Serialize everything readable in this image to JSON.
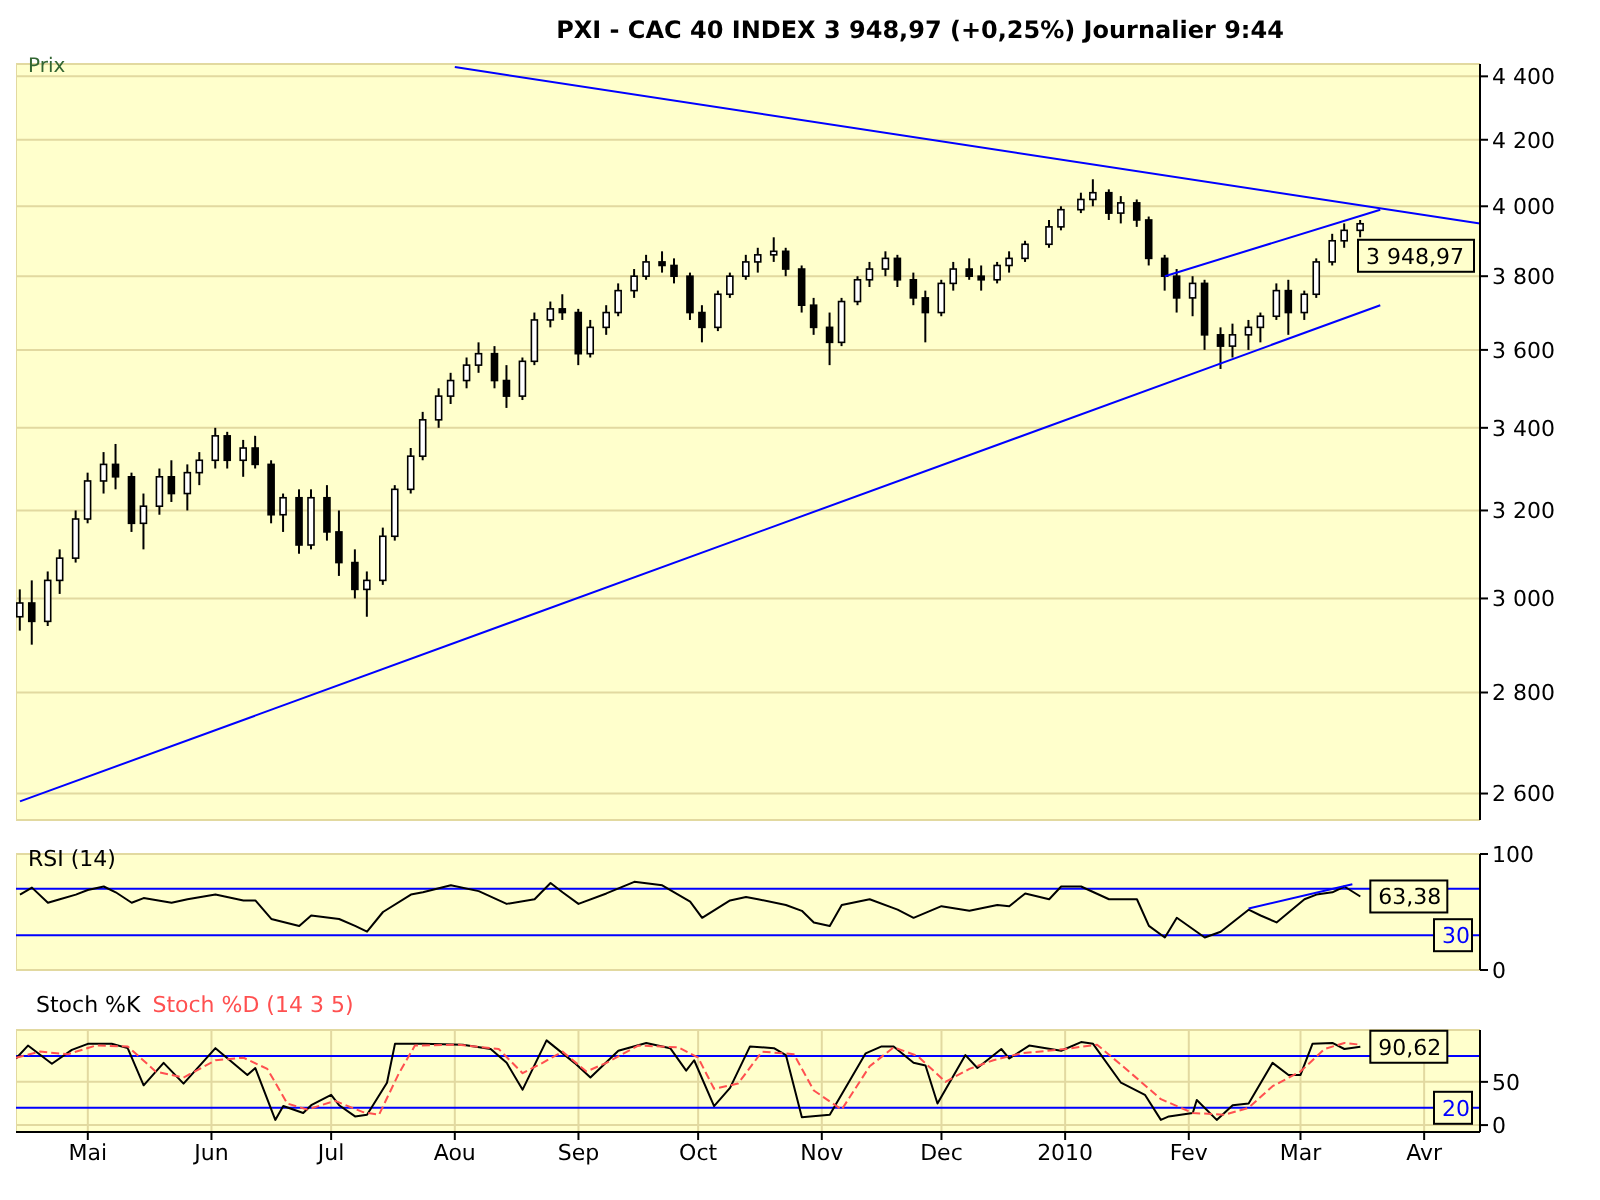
{
  "chart_data": [
    {
      "type": "candlestick",
      "title": "PXI - CAC 40 INDEX   3 948,97 (+0,25%)   Journalier  9:44",
      "ylabel": "Prix",
      "color": "#000000",
      "log": true,
      "grid": true,
      "tick_labels": "y",
      "xlim": [
        "2009-04-13",
        "2010-04-15"
      ],
      "xticks": [
        {
          "value": "2009-05-01",
          "label": null
        },
        {
          "value": "2009-06-01",
          "label": null
        },
        {
          "value": "2009-07-01",
          "label": null
        },
        {
          "value": "2009-08-01",
          "label": null
        },
        {
          "value": "2009-09-01",
          "label": null
        },
        {
          "value": "2009-10-01",
          "label": null
        },
        {
          "value": "2009-11-01",
          "label": null
        },
        {
          "value": "2009-12-01",
          "label": null
        },
        {
          "value": "2010-01-01",
          "label": null
        },
        {
          "value": "2010-02-01",
          "label": null
        },
        {
          "value": "2010-03-01",
          "label": null
        },
        {
          "value": "2010-04-01",
          "label": null
        }
      ],
      "ylim": [
        2550,
        4440
      ],
      "yticks": [
        {
          "value": 2600,
          "label": "2 600"
        },
        {
          "value": 2800,
          "label": "2 800"
        },
        {
          "value": 3000,
          "label": "3 000"
        },
        {
          "value": 3200,
          "label": "3 200"
        },
        {
          "value": 3400,
          "label": "3 400"
        },
        {
          "value": 3600,
          "label": "3 600"
        },
        {
          "value": 3800,
          "label": "3 800"
        },
        {
          "value": 4000,
          "label": "4 000"
        },
        {
          "value": 4200,
          "label": "4 200"
        },
        {
          "value": 4400,
          "label": "4 400"
        }
      ],
      "x": [
        "2009-04-14",
        "2009-04-17",
        "2009-04-21",
        "2009-04-24",
        "2009-04-28",
        "2009-05-01",
        "2009-05-05",
        "2009-05-08",
        "2009-05-12",
        "2009-05-15",
        "2009-05-19",
        "2009-05-22",
        "2009-05-26",
        "2009-05-29",
        "2009-06-02",
        "2009-06-05",
        "2009-06-09",
        "2009-06-12",
        "2009-06-16",
        "2009-06-19",
        "2009-06-23",
        "2009-06-26",
        "2009-06-30",
        "2009-07-03",
        "2009-07-07",
        "2009-07-10",
        "2009-07-14",
        "2009-07-17",
        "2009-07-21",
        "2009-07-24",
        "2009-07-28",
        "2009-07-31",
        "2009-08-04",
        "2009-08-07",
        "2009-08-11",
        "2009-08-14",
        "2009-08-18",
        "2009-08-21",
        "2009-08-25",
        "2009-08-28",
        "2009-09-01",
        "2009-09-04",
        "2009-09-08",
        "2009-09-11",
        "2009-09-15",
        "2009-09-18",
        "2009-09-22",
        "2009-09-25",
        "2009-09-29",
        "2009-10-02",
        "2009-10-06",
        "2009-10-09",
        "2009-10-13",
        "2009-10-16",
        "2009-10-20",
        "2009-10-23",
        "2009-10-27",
        "2009-10-30",
        "2009-11-03",
        "2009-11-06",
        "2009-11-10",
        "2009-11-13",
        "2009-11-17",
        "2009-11-20",
        "2009-11-24",
        "2009-11-27",
        "2009-12-01",
        "2009-12-04",
        "2009-12-08",
        "2009-12-11",
        "2009-12-15",
        "2009-12-18",
        "2009-12-22",
        "2009-12-28",
        "2009-12-31",
        "2010-01-05",
        "2010-01-08",
        "2010-01-12",
        "2010-01-15",
        "2010-01-19",
        "2010-01-22",
        "2010-01-26",
        "2010-01-29",
        "2010-02-02",
        "2010-02-05",
        "2010-02-09",
        "2010-02-12",
        "2010-02-16",
        "2010-02-19",
        "2010-02-23",
        "2010-02-26",
        "2010-03-02",
        "2010-03-05",
        "2010-03-09",
        "2010-03-12",
        "2010-03-16"
      ],
      "ohlc": [
        [
          2960,
          3020,
          2930,
          2990
        ],
        [
          2990,
          3040,
          2900,
          2950
        ],
        [
          2950,
          3060,
          2940,
          3040
        ],
        [
          3040,
          3110,
          3010,
          3090
        ],
        [
          3090,
          3200,
          3080,
          3180
        ],
        [
          3180,
          3290,
          3170,
          3270
        ],
        [
          3270,
          3340,
          3240,
          3310
        ],
        [
          3310,
          3360,
          3250,
          3280
        ],
        [
          3280,
          3290,
          3150,
          3170
        ],
        [
          3170,
          3240,
          3110,
          3210
        ],
        [
          3210,
          3300,
          3190,
          3280
        ],
        [
          3280,
          3320,
          3220,
          3240
        ],
        [
          3240,
          3310,
          3200,
          3290
        ],
        [
          3290,
          3340,
          3260,
          3320
        ],
        [
          3320,
          3400,
          3300,
          3380
        ],
        [
          3380,
          3390,
          3300,
          3320
        ],
        [
          3320,
          3370,
          3280,
          3350
        ],
        [
          3350,
          3380,
          3300,
          3310
        ],
        [
          3310,
          3320,
          3170,
          3190
        ],
        [
          3190,
          3240,
          3150,
          3230
        ],
        [
          3230,
          3250,
          3100,
          3120
        ],
        [
          3120,
          3250,
          3110,
          3230
        ],
        [
          3230,
          3260,
          3130,
          3150
        ],
        [
          3150,
          3200,
          3050,
          3080
        ],
        [
          3080,
          3110,
          3000,
          3020
        ],
        [
          3020,
          3060,
          2960,
          3040
        ],
        [
          3040,
          3160,
          3030,
          3140
        ],
        [
          3140,
          3260,
          3130,
          3250
        ],
        [
          3250,
          3350,
          3240,
          3330
        ],
        [
          3330,
          3440,
          3320,
          3420
        ],
        [
          3420,
          3500,
          3400,
          3480
        ],
        [
          3480,
          3540,
          3460,
          3520
        ],
        [
          3520,
          3580,
          3500,
          3560
        ],
        [
          3560,
          3620,
          3540,
          3590
        ],
        [
          3590,
          3610,
          3500,
          3520
        ],
        [
          3520,
          3560,
          3450,
          3480
        ],
        [
          3480,
          3580,
          3470,
          3570
        ],
        [
          3570,
          3700,
          3560,
          3680
        ],
        [
          3680,
          3730,
          3660,
          3710
        ],
        [
          3710,
          3750,
          3680,
          3700
        ],
        [
          3700,
          3710,
          3560,
          3590
        ],
        [
          3590,
          3680,
          3580,
          3660
        ],
        [
          3660,
          3720,
          3640,
          3700
        ],
        [
          3700,
          3780,
          3690,
          3760
        ],
        [
          3760,
          3820,
          3740,
          3800
        ],
        [
          3800,
          3860,
          3790,
          3840
        ],
        [
          3840,
          3870,
          3810,
          3830
        ],
        [
          3830,
          3850,
          3780,
          3800
        ],
        [
          3800,
          3810,
          3680,
          3700
        ],
        [
          3700,
          3720,
          3620,
          3660
        ],
        [
          3660,
          3760,
          3650,
          3750
        ],
        [
          3750,
          3810,
          3740,
          3800
        ],
        [
          3800,
          3860,
          3790,
          3840
        ],
        [
          3840,
          3880,
          3810,
          3860
        ],
        [
          3860,
          3910,
          3840,
          3870
        ],
        [
          3870,
          3880,
          3800,
          3820
        ],
        [
          3820,
          3830,
          3700,
          3720
        ],
        [
          3720,
          3740,
          3640,
          3660
        ],
        [
          3660,
          3700,
          3560,
          3620
        ],
        [
          3620,
          3740,
          3610,
          3730
        ],
        [
          3730,
          3800,
          3720,
          3790
        ],
        [
          3790,
          3840,
          3770,
          3820
        ],
        [
          3820,
          3870,
          3800,
          3850
        ],
        [
          3850,
          3860,
          3770,
          3790
        ],
        [
          3790,
          3810,
          3720,
          3740
        ],
        [
          3740,
          3760,
          3620,
          3700
        ],
        [
          3700,
          3790,
          3690,
          3780
        ],
        [
          3780,
          3840,
          3760,
          3820
        ],
        [
          3820,
          3850,
          3790,
          3800
        ],
        [
          3800,
          3830,
          3760,
          3790
        ],
        [
          3790,
          3840,
          3780,
          3830
        ],
        [
          3830,
          3870,
          3810,
          3850
        ],
        [
          3850,
          3900,
          3840,
          3890
        ],
        [
          3890,
          3960,
          3880,
          3940
        ],
        [
          3940,
          4000,
          3930,
          3990
        ],
        [
          3990,
          4040,
          3980,
          4020
        ],
        [
          4020,
          4080,
          4000,
          4040
        ],
        [
          4040,
          4050,
          3960,
          3980
        ],
        [
          3980,
          4030,
          3950,
          4010
        ],
        [
          4010,
          4020,
          3940,
          3960
        ],
        [
          3960,
          3970,
          3830,
          3850
        ],
        [
          3850,
          3860,
          3760,
          3800
        ],
        [
          3800,
          3820,
          3700,
          3740
        ],
        [
          3740,
          3800,
          3690,
          3780
        ],
        [
          3780,
          3790,
          3600,
          3640
        ],
        [
          3640,
          3660,
          3550,
          3610
        ],
        [
          3610,
          3670,
          3580,
          3640
        ],
        [
          3640,
          3680,
          3600,
          3660
        ],
        [
          3660,
          3700,
          3620,
          3690
        ],
        [
          3690,
          3780,
          3680,
          3760
        ],
        [
          3760,
          3790,
          3640,
          3700
        ],
        [
          3700,
          3760,
          3680,
          3750
        ],
        [
          3750,
          3850,
          3740,
          3840
        ],
        [
          3840,
          3920,
          3830,
          3900
        ],
        [
          3900,
          3950,
          3880,
          3930
        ],
        [
          3930,
          3960,
          3910,
          3948.97
        ]
      ],
      "series": [
        {
          "type": "line",
          "color": "#0000ff",
          "x": [
            "2009-08-01",
            "2010-04-15"
          ],
          "values": [
            4430,
            3950
          ]
        },
        {
          "type": "line",
          "color": "#0000ff",
          "x": [
            "2009-04-14",
            "2010-03-21"
          ],
          "values": [
            2585,
            3720
          ]
        },
        {
          "type": "line",
          "color": "#0000ff",
          "x": [
            "2010-01-26",
            "2010-03-21"
          ],
          "values": [
            3800,
            3990
          ]
        }
      ],
      "annotations": [
        {
          "text": "3 948,97",
          "x": "2010-03-16",
          "y": 3948.97
        }
      ]
    },
    {
      "type": "line",
      "title": "RSI (14)",
      "grid": true,
      "tick_labels": "y",
      "xlim": [
        "2009-04-13",
        "2010-04-15"
      ],
      "xticks": [
        {
          "value": "2009-05-01",
          "label": null
        },
        {
          "value": "2009-06-01",
          "label": null
        },
        {
          "value": "2009-07-01",
          "label": null
        },
        {
          "value": "2009-08-01",
          "label": null
        },
        {
          "value": "2009-09-01",
          "label": null
        },
        {
          "value": "2009-10-01",
          "label": null
        },
        {
          "value": "2009-11-01",
          "label": null
        },
        {
          "value": "2009-12-01",
          "label": null
        },
        {
          "value": "2010-01-01",
          "label": null
        },
        {
          "value": "2010-02-01",
          "label": null
        },
        {
          "value": "2010-03-01",
          "label": null
        },
        {
          "value": "2010-04-01",
          "label": null
        }
      ],
      "ylim": [
        0,
        100
      ],
      "yticks": [
        0,
        100
      ],
      "series": [
        {
          "color": "#000000",
          "x": [
            "2009-04-14",
            "2009-04-17",
            "2009-04-21",
            "2009-04-24",
            "2009-04-28",
            "2009-05-01",
            "2009-05-05",
            "2009-05-08",
            "2009-05-12",
            "2009-05-15",
            "2009-05-22",
            "2009-05-26",
            "2009-06-02",
            "2009-06-09",
            "2009-06-12",
            "2009-06-16",
            "2009-06-23",
            "2009-06-26",
            "2009-07-03",
            "2009-07-07",
            "2009-07-10",
            "2009-07-14",
            "2009-07-21",
            "2009-07-24",
            "2009-07-31",
            "2009-08-07",
            "2009-08-14",
            "2009-08-21",
            "2009-08-25",
            "2009-08-28",
            "2009-09-01",
            "2009-09-08",
            "2009-09-15",
            "2009-09-22",
            "2009-09-29",
            "2009-10-02",
            "2009-10-09",
            "2009-10-13",
            "2009-10-16",
            "2009-10-23",
            "2009-10-27",
            "2009-10-30",
            "2009-11-03",
            "2009-11-06",
            "2009-11-13",
            "2009-11-20",
            "2009-11-24",
            "2009-12-01",
            "2009-12-08",
            "2009-12-15",
            "2009-12-18",
            "2009-12-22",
            "2009-12-28",
            "2009-12-31",
            "2010-01-05",
            "2010-01-12",
            "2010-01-19",
            "2010-01-22",
            "2010-01-26",
            "2010-01-29",
            "2010-02-05",
            "2010-02-09",
            "2010-02-16",
            "2010-02-19",
            "2010-02-23",
            "2010-03-02",
            "2010-03-05",
            "2010-03-09",
            "2010-03-12",
            "2010-03-16"
          ],
          "values": [
            65,
            71,
            58,
            61,
            65,
            69,
            72,
            67,
            58,
            62,
            58,
            61,
            65,
            60,
            60,
            44,
            38,
            47,
            44,
            38,
            33,
            50,
            65,
            67,
            73,
            68,
            57,
            61,
            75,
            67,
            57,
            66,
            76,
            73,
            59,
            45,
            60,
            63,
            61,
            56,
            51,
            41,
            38,
            56,
            61,
            52,
            45,
            55,
            51,
            56,
            55,
            66,
            61,
            72,
            72,
            61,
            61,
            38,
            28,
            45,
            28,
            33,
            52,
            47,
            41,
            61,
            65,
            67,
            72,
            63.38
          ]
        },
        {
          "color": "#0000ff",
          "x": [
            "2010-02-16",
            "2010-03-14"
          ],
          "values": [
            53,
            74
          ]
        }
      ],
      "ref_lines": [
        {
          "axis": "y",
          "value": 70,
          "label": null,
          "color": "#0000ff"
        },
        {
          "axis": "y",
          "value": 30,
          "label": "30",
          "color": "#0000ff"
        }
      ],
      "annotations": [
        {
          "text": "63,38",
          "x": "2010-03-16",
          "y": 63.38
        }
      ]
    },
    {
      "type": "line",
      "grid": true,
      "legend": "top left",
      "xlim": [
        "2009-04-13",
        "2010-04-15"
      ],
      "xticks": [
        {
          "value": "2009-05-01",
          "label": "Mai"
        },
        {
          "value": "2009-06-01",
          "label": "Jun"
        },
        {
          "value": "2009-07-01",
          "label": "Jul"
        },
        {
          "value": "2009-08-01",
          "label": "Aou"
        },
        {
          "value": "2009-09-01",
          "label": "Sep"
        },
        {
          "value": "2009-10-01",
          "label": "Oct"
        },
        {
          "value": "2009-11-01",
          "label": "Nov"
        },
        {
          "value": "2009-12-01",
          "label": "Dec"
        },
        {
          "value": "2010-01-01",
          "label": "2010"
        },
        {
          "value": "2010-02-01",
          "label": "Fev"
        },
        {
          "value": "2010-03-01",
          "label": "Mar"
        },
        {
          "value": "2010-04-01",
          "label": "Avr"
        }
      ],
      "ylim": [
        -8,
        110
      ],
      "yticks": [
        0,
        50
      ],
      "series": [
        {
          "name": "Stoch %K",
          "color": "#000000",
          "x": [
            "2009-04-13",
            "2009-04-16",
            "2009-04-22",
            "2009-04-27",
            "2009-05-01",
            "2009-05-07",
            "2009-05-11",
            "2009-05-15",
            "2009-05-20",
            "2009-05-25",
            "2009-06-02",
            "2009-06-10",
            "2009-06-12",
            "2009-06-17",
            "2009-06-19",
            "2009-06-24",
            "2009-06-26",
            "2009-07-01",
            "2009-07-03",
            "2009-07-07",
            "2009-07-10",
            "2009-07-15",
            "2009-07-17",
            "2009-07-24",
            "2009-08-03",
            "2009-08-10",
            "2009-08-14",
            "2009-08-18",
            "2009-08-24",
            "2009-08-31",
            "2009-09-04",
            "2009-09-11",
            "2009-09-18",
            "2009-09-24",
            "2009-09-28",
            "2009-09-30",
            "2009-10-05",
            "2009-10-09",
            "2009-10-14",
            "2009-10-20",
            "2009-10-23",
            "2009-10-27",
            "2009-11-03",
            "2009-11-12",
            "2009-11-16",
            "2009-11-19",
            "2009-11-24",
            "2009-11-27",
            "2009-11-30",
            "2009-12-07",
            "2009-12-10",
            "2009-12-16",
            "2009-12-18",
            "2009-12-23",
            "2009-12-31",
            "2010-01-05",
            "2010-01-08",
            "2010-01-15",
            "2010-01-21",
            "2010-01-25",
            "2010-01-27",
            "2010-02-02",
            "2010-02-03",
            "2010-02-08",
            "2010-02-12",
            "2010-02-16",
            "2010-02-22",
            "2010-02-26",
            "2010-03-01",
            "2010-03-04",
            "2010-03-09",
            "2010-03-12",
            "2010-03-16"
          ],
          "values": [
            77,
            92,
            71,
            87,
            94,
            94,
            89,
            46,
            72,
            48,
            89,
            58,
            66,
            6,
            22,
            14,
            23,
            35,
            23,
            10,
            12,
            49,
            94,
            94,
            93,
            88,
            72,
            41,
            98,
            72,
            55,
            86,
            95,
            89,
            63,
            75,
            22,
            43,
            91,
            89,
            81,
            9,
            12,
            83,
            91,
            91,
            72,
            69,
            25,
            81,
            66,
            88,
            77,
            92,
            86,
            96,
            94,
            49,
            35,
            6,
            10,
            14,
            29,
            6,
            23,
            25,
            72,
            58,
            58,
            94,
            95,
            88,
            90.62
          ]
        },
        {
          "name": "Stoch %D (14 3 5)",
          "color": "#ff5050",
          "line_style": "dashed",
          "x": [
            "2009-04-13",
            "2009-04-19",
            "2009-04-26",
            "2009-05-03",
            "2009-05-11",
            "2009-05-18",
            "2009-05-25",
            "2009-06-02",
            "2009-06-09",
            "2009-06-15",
            "2009-06-20",
            "2009-06-25",
            "2009-07-02",
            "2009-07-09",
            "2009-07-13",
            "2009-07-18",
            "2009-07-22",
            "2009-08-02",
            "2009-08-12",
            "2009-08-18",
            "2009-08-23",
            "2009-08-28",
            "2009-09-03",
            "2009-09-08",
            "2009-09-16",
            "2009-09-26",
            "2009-10-01",
            "2009-10-05",
            "2009-10-11",
            "2009-10-17",
            "2009-10-25",
            "2009-10-30",
            "2009-11-06",
            "2009-11-13",
            "2009-11-19",
            "2009-11-25",
            "2009-12-02",
            "2009-12-08",
            "2009-12-14",
            "2009-12-21",
            "2010-01-01",
            "2010-01-09",
            "2010-01-17",
            "2010-01-25",
            "2010-02-02",
            "2010-02-10",
            "2010-02-16",
            "2010-02-22",
            "2010-03-01",
            "2010-03-07",
            "2010-03-12",
            "2010-03-16"
          ],
          "values": [
            78,
            85,
            82,
            92,
            91,
            62,
            55,
            75,
            78,
            65,
            25,
            18,
            28,
            15,
            12,
            60,
            92,
            93,
            88,
            60,
            72,
            85,
            62,
            72,
            92,
            90,
            78,
            42,
            48,
            85,
            82,
            40,
            18,
            68,
            90,
            80,
            50,
            65,
            75,
            83,
            88,
            93,
            62,
            30,
            14,
            12,
            20,
            45,
            62,
            88,
            95,
            93
          ]
        }
      ],
      "ref_lines": [
        {
          "axis": "y",
          "value": 80,
          "label": null,
          "color": "#0000ff"
        },
        {
          "axis": "y",
          "value": 20,
          "label": "20",
          "color": "#0000ff"
        }
      ],
      "annotations": [
        {
          "text": "90,62",
          "x": "2010-03-16",
          "y": 90.62
        }
      ]
    }
  ]
}
